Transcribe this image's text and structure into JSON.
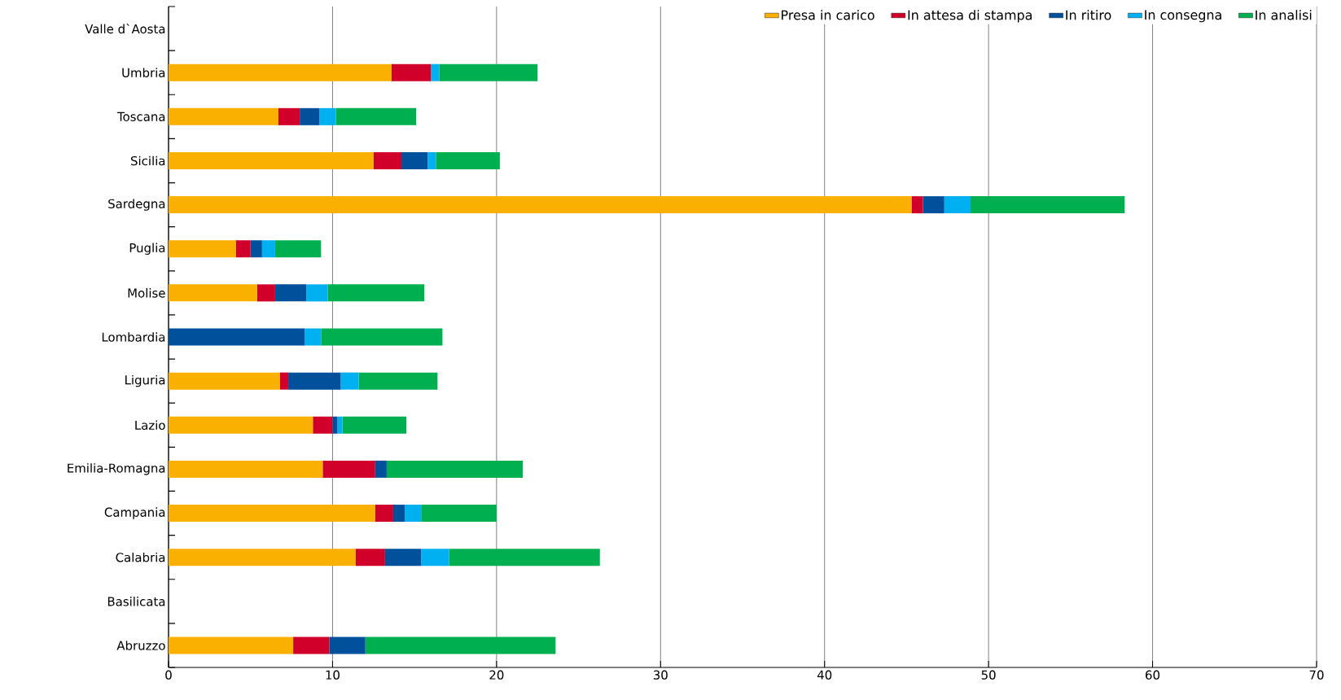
{
  "chart_data": {
    "type": "bar",
    "orientation": "horizontal",
    "stacked": true,
    "categories": [
      "Valle d`Aosta",
      "Umbria",
      "Toscana",
      "Sicilia",
      "Sardegna",
      "Puglia",
      "Molise",
      "Lombardia",
      "Liguria",
      "Lazio",
      "Emilia-Romagna",
      "Campania",
      "Calabria",
      "Basilicata",
      "Abruzzo"
    ],
    "series": [
      {
        "name": "Presa in carico",
        "color": "#f9b000",
        "values": [
          0,
          13.6,
          6.7,
          12.5,
          45.3,
          4.1,
          5.4,
          0,
          6.8,
          8.8,
          9.4,
          12.6,
          11.4,
          0,
          7.6
        ]
      },
      {
        "name": "In attesa di stampa",
        "color": "#d0002a",
        "values": [
          0,
          2.4,
          1.3,
          1.7,
          0.7,
          0.9,
          1.1,
          0,
          0.5,
          1.2,
          3.2,
          1.1,
          1.8,
          0,
          2.2
        ]
      },
      {
        "name": "In ritiro",
        "color": "#00509c",
        "values": [
          0,
          0,
          1.2,
          1.6,
          1.3,
          0.7,
          1.9,
          8.3,
          3.2,
          0.3,
          0.7,
          0.7,
          2.2,
          0,
          2.2
        ]
      },
      {
        "name": "In consegna",
        "color": "#00b0f0",
        "values": [
          0,
          0.5,
          1.0,
          0.5,
          1.6,
          0.8,
          1.3,
          1.0,
          1.1,
          0.3,
          0,
          1.0,
          1.7,
          0,
          0
        ]
      },
      {
        "name": "In analisi",
        "color": "#00b050",
        "values": [
          0,
          6.0,
          4.9,
          3.9,
          9.4,
          2.8,
          5.9,
          7.4,
          4.8,
          3.9,
          8.3,
          4.6,
          9.2,
          0,
          11.6
        ]
      }
    ],
    "xlim": [
      0,
      70
    ],
    "xticks": [
      0,
      10,
      20,
      30,
      40,
      50,
      60,
      70
    ],
    "grid": "x",
    "legend": "top right"
  }
}
